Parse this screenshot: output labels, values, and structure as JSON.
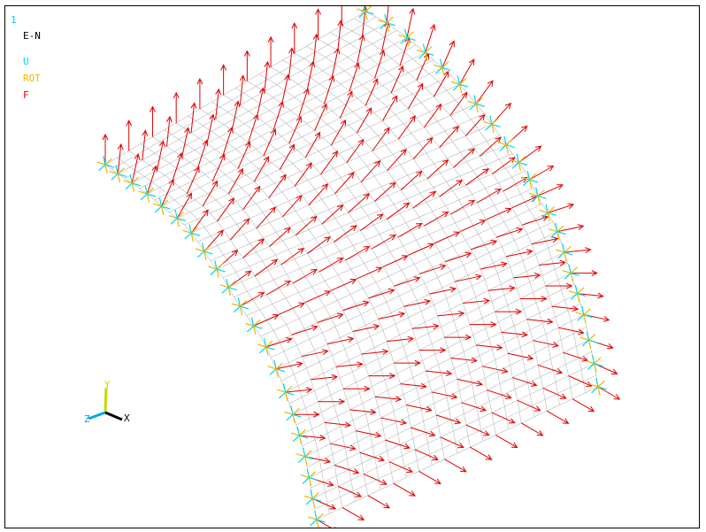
{
  "window_number": "1",
  "legend": {
    "title": "E-N",
    "entries": [
      {
        "label": "U",
        "color": "#00d8e8"
      },
      {
        "label": "ROT",
        "color": "#e6b800"
      },
      {
        "label": "F",
        "color": "#e00000"
      }
    ]
  },
  "triad": {
    "y_label": "Y",
    "z_label": "Z",
    "x_label": "X",
    "y_color": "#c8d800",
    "z_color": "#00a8e0",
    "x_color": "#000000"
  },
  "colors": {
    "mesh": "#b8b8b8",
    "force": "#e00000",
    "disp": "#00d8e8",
    "rot": "#e6b800"
  }
}
